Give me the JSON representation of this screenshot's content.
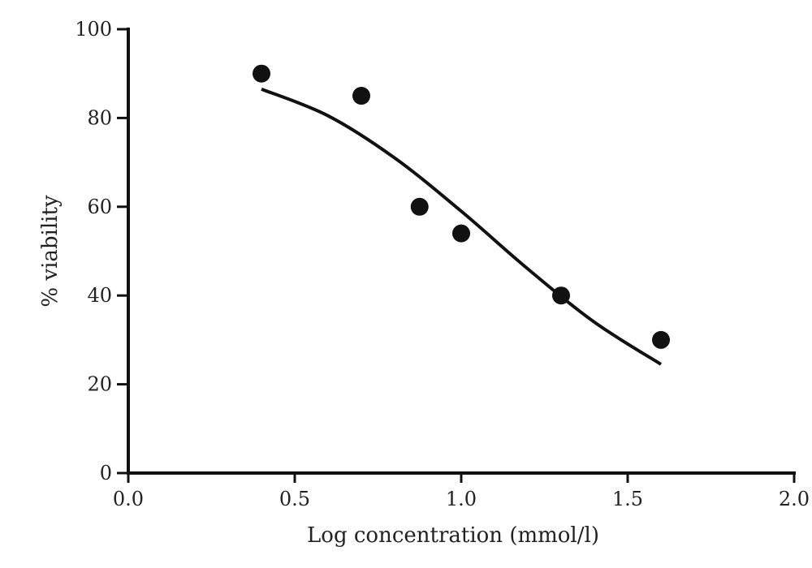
{
  "chart_data": {
    "type": "scatter",
    "xlabel": "Log concentration (mmol/l)",
    "ylabel": "% viability",
    "xlim": [
      0,
      2
    ],
    "ylim": [
      0,
      100
    ],
    "x_ticks": [
      "0.0",
      "0.5",
      "1.0",
      "1.5",
      "2.0"
    ],
    "y_ticks": [
      "0",
      "20",
      "40",
      "60",
      "80",
      "100"
    ],
    "grid": false,
    "series": [
      {
        "x": [
          0.4,
          0.7,
          0.875,
          1.0,
          1.3,
          1.6
        ],
        "y": [
          90,
          85,
          60,
          54,
          40,
          30
        ]
      }
    ],
    "fit_curve": {
      "x": [
        0.4,
        0.6,
        0.8,
        1.0,
        1.2,
        1.4,
        1.6
      ],
      "y": [
        86.5,
        80.5,
        71,
        59,
        46,
        34,
        24.5
      ]
    }
  }
}
